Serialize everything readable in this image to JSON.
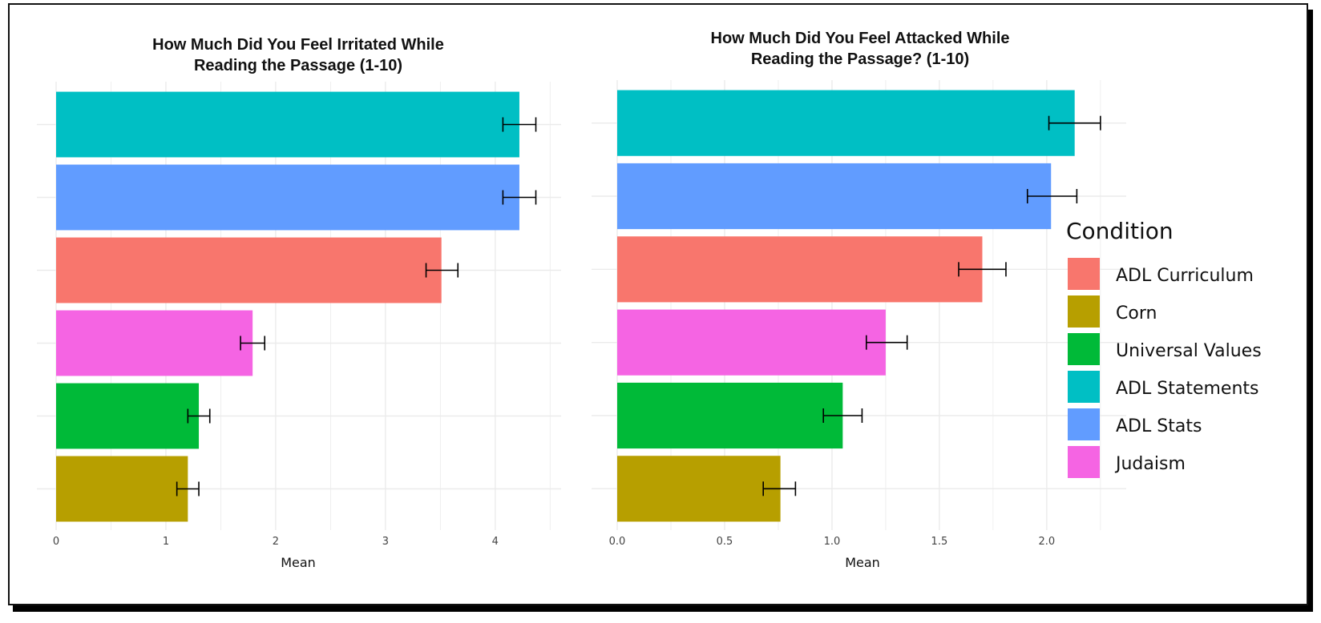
{
  "chart_data": [
    {
      "type": "bar",
      "orientation": "horizontal",
      "title": "How Much Did You Feel Irritated While Reading the Passage (1-10)",
      "title_lines": [
        "How Much Did You Feel Irritated While",
        "Reading the Passage (1-10)"
      ],
      "xlabel": "Mean",
      "ylabel": "",
      "xlim": [
        0,
        4.6
      ],
      "x_ticks": [
        "0",
        "1",
        "2",
        "3",
        "4"
      ],
      "x_tick_values": [
        0,
        1,
        2,
        3,
        4
      ],
      "categories": [
        "ADL Statements",
        "ADL Stats",
        "ADL Curriculum",
        "Judaism",
        "Universal Values",
        "Corn"
      ],
      "values": [
        4.22,
        4.22,
        3.51,
        1.79,
        1.3,
        1.2
      ],
      "error_low": [
        4.07,
        4.07,
        3.37,
        1.68,
        1.2,
        1.1
      ],
      "error_high": [
        4.37,
        4.37,
        3.66,
        1.9,
        1.4,
        1.3
      ],
      "grid": true
    },
    {
      "type": "bar",
      "orientation": "horizontal",
      "title": "How Much Did You Feel Attacked While Reading the Passage? (1-10)",
      "title_lines": [
        "How Much Did You Feel Attacked While",
        "Reading the Passage? (1-10)"
      ],
      "xlabel": "Mean",
      "ylabel": "",
      "xlim": [
        0,
        2.37
      ],
      "x_ticks": [
        "0.0",
        "0.5",
        "1.0",
        "1.5",
        "2.0"
      ],
      "x_tick_values": [
        0,
        0.5,
        1.0,
        1.5,
        2.0
      ],
      "categories": [
        "ADL Statements",
        "ADL Stats",
        "ADL Curriculum",
        "Judaism",
        "Universal Values",
        "Corn"
      ],
      "values": [
        2.13,
        2.02,
        1.7,
        1.25,
        1.05,
        0.76
      ],
      "error_low": [
        2.01,
        1.91,
        1.59,
        1.16,
        0.96,
        0.68
      ],
      "error_high": [
        2.25,
        2.14,
        1.81,
        1.35,
        1.14,
        0.83
      ],
      "grid": true
    }
  ],
  "legend": {
    "title": "Condition",
    "placement": "right",
    "items": [
      {
        "label": "ADL Curriculum",
        "color": "#F8766D"
      },
      {
        "label": "Corn",
        "color": "#B79F00"
      },
      {
        "label": "Universal Values",
        "color": "#00BA38"
      },
      {
        "label": "ADL Statements",
        "color": "#00BFC4"
      },
      {
        "label": "ADL Stats",
        "color": "#619CFF"
      },
      {
        "label": "Judaism",
        "color": "#F564E3"
      }
    ]
  },
  "colors": {
    "ADL Curriculum": "#F8766D",
    "Corn": "#B79F00",
    "Universal Values": "#00BA38",
    "ADL Statements": "#00BFC4",
    "ADL Stats": "#619CFF",
    "Judaism": "#F564E3",
    "grid": "#EBEBEB",
    "error_bar": "#000000"
  }
}
